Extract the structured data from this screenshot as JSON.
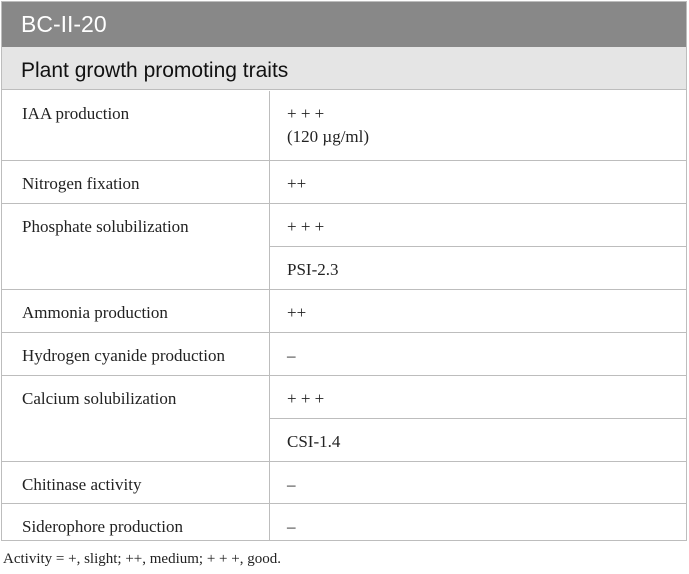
{
  "table": {
    "title": "BC-II-20",
    "section": "Plant growth promoting traits",
    "rows": [
      {
        "trait": "IAA production",
        "values": [
          "+ + +",
          "(120 µg/ml)"
        ]
      },
      {
        "trait": "Nitrogen fixation",
        "values": [
          "++"
        ]
      },
      {
        "trait": "Phosphate solubilization",
        "values": [
          "+ + +",
          "PSI-2.3"
        ]
      },
      {
        "trait": "Ammonia production",
        "values": [
          "++"
        ]
      },
      {
        "trait": "Hydrogen cyanide production",
        "values": [
          "–"
        ]
      },
      {
        "trait": "Calcium solubilization",
        "values": [
          "+ + +",
          "CSI-1.4"
        ]
      },
      {
        "trait": "Chitinase activity",
        "values": [
          "–"
        ]
      },
      {
        "trait": "Siderophore production",
        "values": [
          "–"
        ]
      }
    ]
  },
  "footnote": "Activity = +, slight; ++, medium; + + +, good."
}
